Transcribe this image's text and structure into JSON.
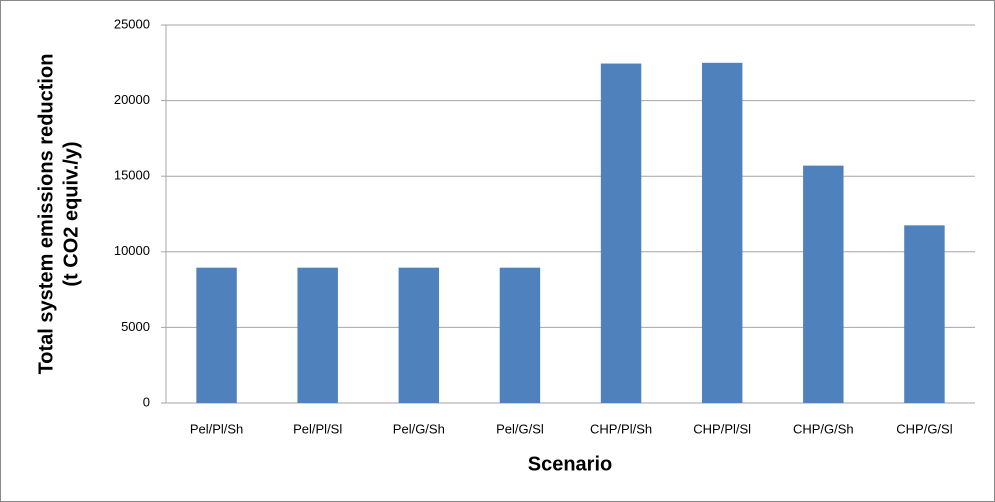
{
  "chart_data": {
    "type": "bar",
    "ylabel": [
      "Total system emissions reduction",
      "(t CO2 equiv./y)"
    ],
    "xlabel": "Scenario",
    "categories": [
      "Pel/Pl/Sh",
      "Pel/Pl/Sl",
      "Pel/G/Sh",
      "Pel/G/Sl",
      "CHP/Pl/Sh",
      "CHP/Pl/Sl",
      "CHP/G/Sh",
      "CHP/G/Sl"
    ],
    "values": [
      8950,
      8950,
      8950,
      8950,
      22450,
      22500,
      15700,
      11750
    ],
    "color": "#4f81bd",
    "ylim": [
      0,
      25000
    ],
    "yticks": [
      0,
      5000,
      10000,
      15000,
      20000,
      25000
    ],
    "grid": true
  }
}
